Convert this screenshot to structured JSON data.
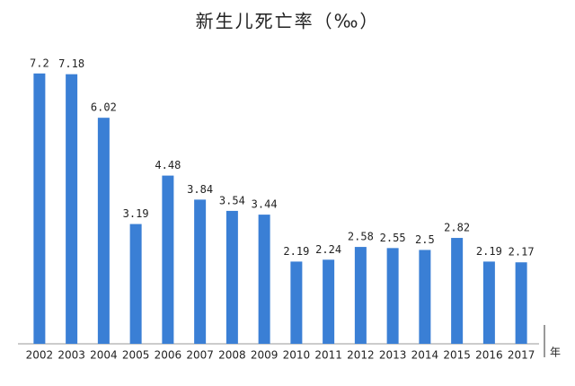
{
  "chart_data": {
    "type": "bar",
    "title": "新生儿死亡率（‰）",
    "x_label": "年",
    "categories": [
      "2002",
      "2003",
      "2004",
      "2005",
      "2006",
      "2007",
      "2008",
      "2009",
      "2010",
      "2011",
      "2012",
      "2013",
      "2014",
      "2015",
      "2016",
      "2017"
    ],
    "values": [
      7.2,
      7.18,
      6.02,
      3.19,
      4.48,
      3.84,
      3.54,
      3.44,
      2.19,
      2.24,
      2.58,
      2.55,
      2.5,
      2.82,
      2.19,
      2.17
    ],
    "color": "#3a7fd5",
    "ylim": [
      0,
      8.2
    ]
  }
}
